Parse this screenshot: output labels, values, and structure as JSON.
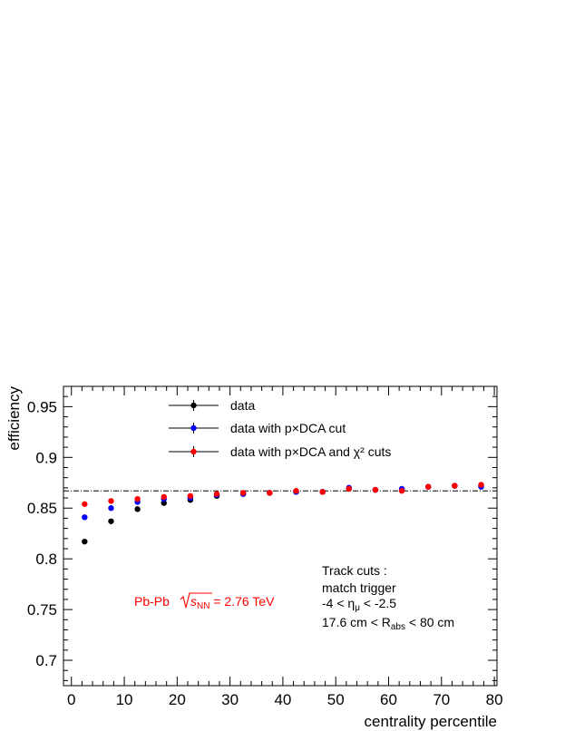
{
  "chart_data": {
    "type": "scatter",
    "xlabel": "centrality percentile",
    "ylabel": "efficiency",
    "xlim": [
      -1.5,
      80.5
    ],
    "ylim": [
      0.675,
      0.97
    ],
    "xticks": [
      "0",
      "10",
      "20",
      "30",
      "40",
      "50",
      "60",
      "70",
      "80"
    ],
    "yticks": [
      "0.7",
      "0.75",
      "0.8",
      "0.85",
      "0.9",
      "0.95"
    ],
    "x": [
      2.5,
      7.5,
      12.5,
      17.5,
      22.5,
      27.5,
      32.5,
      37.5,
      42.5,
      47.5,
      52.5,
      57.5,
      62.5,
      67.5,
      72.5,
      77.5
    ],
    "series": [
      {
        "name": "data",
        "color": "#000000",
        "values": [
          0.817,
          0.837,
          0.849,
          0.855,
          0.858,
          0.862,
          0.864,
          0.865,
          0.866,
          0.866,
          0.869,
          0.868,
          0.868,
          0.871,
          0.872,
          0.872
        ]
      },
      {
        "name": "data with p×DCA cut",
        "color": "#0000ff",
        "values": [
          0.841,
          0.85,
          0.856,
          0.859,
          0.86,
          0.863,
          0.864,
          0.865,
          0.866,
          0.866,
          0.87,
          0.868,
          0.869,
          0.871,
          0.872,
          0.871
        ]
      },
      {
        "name": "data with p×DCA and χ² cuts",
        "color": "#ff0000",
        "values": [
          0.854,
          0.857,
          0.859,
          0.861,
          0.862,
          0.864,
          0.865,
          0.865,
          0.867,
          0.866,
          0.869,
          0.868,
          0.867,
          0.871,
          0.872,
          0.873
        ]
      }
    ],
    "reference_line": {
      "y": 0.867,
      "style": "dash-dot",
      "color": "#000000"
    },
    "legend_placement": "top-center",
    "annotations": {
      "system": {
        "prefix": "Pb-Pb",
        "sqrt": "s",
        "subscript": "NN",
        "suffix": " = 2.76 TeV",
        "color": "#ff0000"
      },
      "track_cuts": {
        "title": "Track cuts :",
        "line1": "match trigger",
        "line2_prefix": "-4 < η",
        "line2_sub": "μ",
        "line2_suffix": " < -2.5",
        "line3_prefix": "17.6 cm < R",
        "line3_sub": "abs",
        "line3_suffix": " < 80 cm"
      }
    }
  }
}
